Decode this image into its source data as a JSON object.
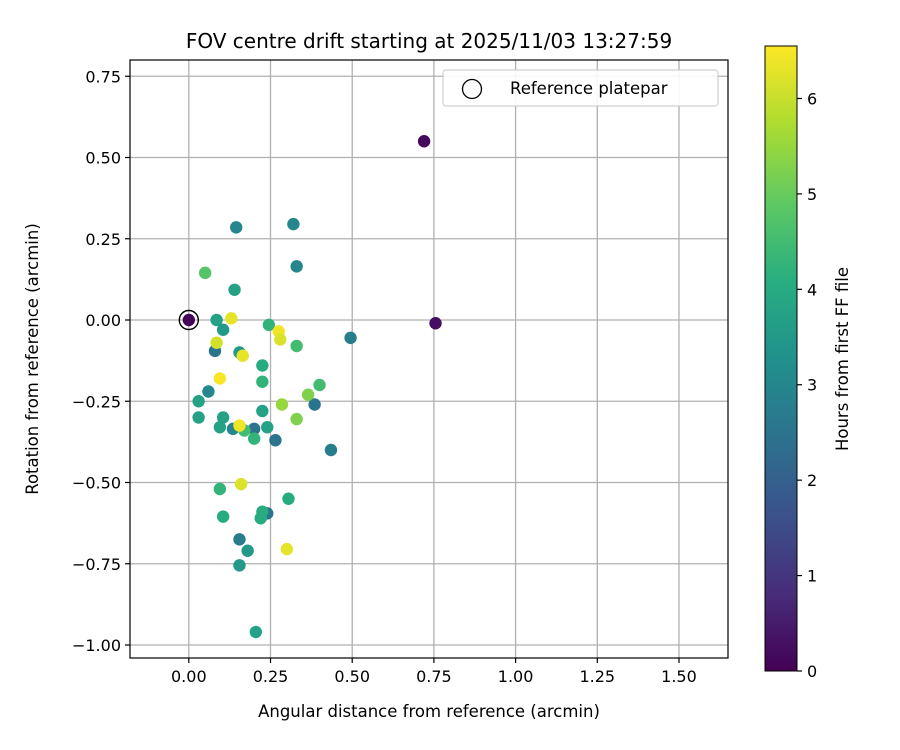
{
  "chart_data": {
    "type": "scatter",
    "title": "FOV centre drift starting at 2025/11/03 13:27:59",
    "xlabel": "Angular distance from reference (arcmin)",
    "ylabel": "Rotation from reference (arcmin)",
    "xlim": [
      -0.18,
      1.65
    ],
    "ylim": [
      -1.04,
      0.8
    ],
    "xticks": [
      0.0,
      0.25,
      0.5,
      0.75,
      1.0,
      1.25,
      1.5
    ],
    "xtick_labels": [
      "0.00",
      "0.25",
      "0.50",
      "0.75",
      "1.00",
      "1.25",
      "1.50"
    ],
    "yticks": [
      0.75,
      0.5,
      0.25,
      0.0,
      -0.25,
      -0.5,
      -0.75,
      -1.0
    ],
    "ytick_labels": [
      "0.75",
      "0.50",
      "0.25",
      "0.00",
      "−0.25",
      "−0.50",
      "−0.75",
      "−1.00"
    ],
    "grid": true,
    "legend": {
      "label": "Reference platepar",
      "placement": "top-right"
    },
    "reference_point": {
      "x": 0.0,
      "y": 0.0,
      "hours": 0.2
    },
    "colorbar": {
      "label": "Hours from first FF file",
      "colormap": "viridis",
      "range": [
        0,
        6.55
      ],
      "ticks": [
        0,
        1,
        2,
        3,
        4,
        5,
        6
      ],
      "tick_labels": [
        "0",
        "1",
        "2",
        "3",
        "4",
        "5",
        "6"
      ]
    },
    "points": [
      {
        "x": 0.0,
        "y": 0.0,
        "hours": 0.1
      },
      {
        "x": 0.72,
        "y": 0.55,
        "hours": 0.15
      },
      {
        "x": 0.755,
        "y": -0.01,
        "hours": 0.25
      },
      {
        "x": 0.495,
        "y": -0.055,
        "hours": 2.75
      },
      {
        "x": 0.32,
        "y": 0.295,
        "hours": 3.0
      },
      {
        "x": 0.145,
        "y": 0.285,
        "hours": 3.0
      },
      {
        "x": 0.33,
        "y": 0.165,
        "hours": 3.0
      },
      {
        "x": 0.08,
        "y": -0.095,
        "hours": 2.5
      },
      {
        "x": 0.06,
        "y": -0.22,
        "hours": 3.0
      },
      {
        "x": 0.385,
        "y": -0.26,
        "hours": 2.5
      },
      {
        "x": 0.435,
        "y": -0.4,
        "hours": 2.75
      },
      {
        "x": 0.265,
        "y": -0.37,
        "hours": 2.5
      },
      {
        "x": 0.2,
        "y": -0.335,
        "hours": 2.5
      },
      {
        "x": 0.135,
        "y": -0.335,
        "hours": 3.0
      },
      {
        "x": 0.24,
        "y": -0.595,
        "hours": 2.5
      },
      {
        "x": 0.155,
        "y": -0.675,
        "hours": 2.75
      },
      {
        "x": 0.18,
        "y": -0.71,
        "hours": 3.5
      },
      {
        "x": 0.155,
        "y": -0.755,
        "hours": 3.5
      },
      {
        "x": 0.205,
        "y": -0.96,
        "hours": 3.75
      },
      {
        "x": 0.14,
        "y": 0.093,
        "hours": 3.75
      },
      {
        "x": 0.085,
        "y": 0.0,
        "hours": 3.75
      },
      {
        "x": 0.105,
        "y": -0.03,
        "hours": 3.5
      },
      {
        "x": 0.155,
        "y": -0.1,
        "hours": 3.5
      },
      {
        "x": 0.225,
        "y": -0.14,
        "hours": 4.0
      },
      {
        "x": 0.225,
        "y": -0.19,
        "hours": 4.25
      },
      {
        "x": 0.03,
        "y": -0.25,
        "hours": 3.75
      },
      {
        "x": 0.03,
        "y": -0.3,
        "hours": 3.75
      },
      {
        "x": 0.105,
        "y": -0.3,
        "hours": 3.75
      },
      {
        "x": 0.095,
        "y": -0.33,
        "hours": 3.75
      },
      {
        "x": 0.225,
        "y": -0.28,
        "hours": 3.75
      },
      {
        "x": 0.24,
        "y": -0.33,
        "hours": 3.75
      },
      {
        "x": 0.17,
        "y": -0.34,
        "hours": 4.5
      },
      {
        "x": 0.2,
        "y": -0.365,
        "hours": 4.25
      },
      {
        "x": 0.245,
        "y": -0.015,
        "hours": 4.25
      },
      {
        "x": 0.33,
        "y": -0.08,
        "hours": 4.5
      },
      {
        "x": 0.4,
        "y": -0.2,
        "hours": 4.5
      },
      {
        "x": 0.305,
        "y": -0.55,
        "hours": 4.0
      },
      {
        "x": 0.225,
        "y": -0.59,
        "hours": 4.0
      },
      {
        "x": 0.22,
        "y": -0.61,
        "hours": 4.0
      },
      {
        "x": 0.095,
        "y": -0.52,
        "hours": 4.25
      },
      {
        "x": 0.105,
        "y": -0.605,
        "hours": 4.0
      },
      {
        "x": 0.05,
        "y": 0.145,
        "hours": 4.75
      },
      {
        "x": 0.365,
        "y": -0.23,
        "hours": 5.25
      },
      {
        "x": 0.285,
        "y": -0.26,
        "hours": 5.5
      },
      {
        "x": 0.33,
        "y": -0.305,
        "hours": 5.25
      },
      {
        "x": 0.085,
        "y": -0.07,
        "hours": 6.1
      },
      {
        "x": 0.13,
        "y": 0.005,
        "hours": 6.3
      },
      {
        "x": 0.275,
        "y": -0.035,
        "hours": 6.4
      },
      {
        "x": 0.28,
        "y": -0.06,
        "hours": 6.2
      },
      {
        "x": 0.165,
        "y": -0.11,
        "hours": 6.3
      },
      {
        "x": 0.095,
        "y": -0.18,
        "hours": 6.5
      },
      {
        "x": 0.155,
        "y": -0.325,
        "hours": 6.4
      },
      {
        "x": 0.16,
        "y": -0.505,
        "hours": 6.2
      },
      {
        "x": 0.3,
        "y": -0.705,
        "hours": 6.3
      }
    ]
  }
}
